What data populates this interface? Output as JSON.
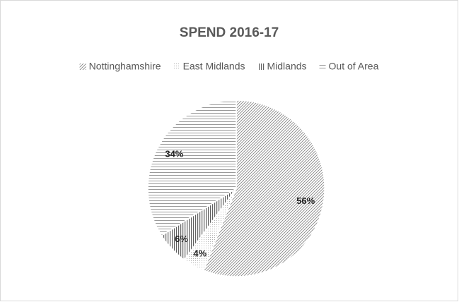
{
  "chart_data": {
    "type": "pie",
    "title": "SPEND 2016-17",
    "categories": [
      "Nottinghamshire",
      "East Midlands",
      "Midlands",
      "Out of Area"
    ],
    "values": [
      56,
      4,
      6,
      34
    ],
    "value_labels": [
      "56%",
      "4%",
      "6%",
      "34%"
    ],
    "patterns": [
      "diagonal",
      "dots",
      "vertical",
      "horizontal"
    ],
    "colors": [
      "#808080",
      "#b0b0b0",
      "#606060",
      "#9a9a9a"
    ],
    "legend": "top"
  }
}
